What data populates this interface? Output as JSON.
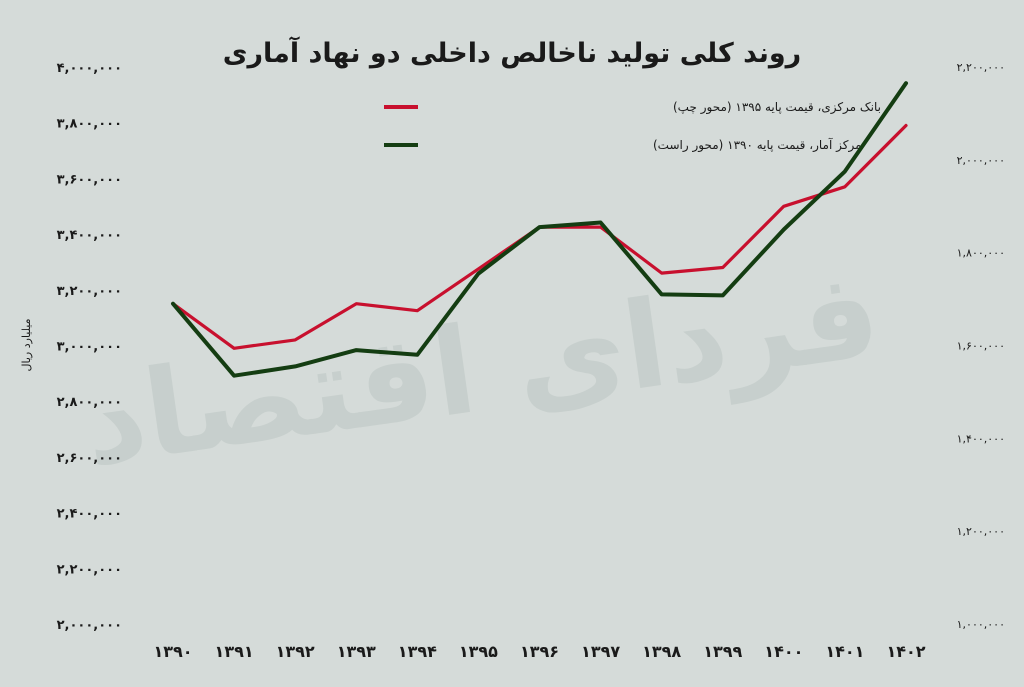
{
  "chart_data": {
    "type": "line",
    "title": "روند کلی تولید ناخالص داخلی دو نهاد آماری",
    "ylabel": "میلیارد ریال",
    "watermark": "فردای اقتصاد",
    "categories": [
      "۱۳۹۰",
      "۱۳۹۱",
      "۱۳۹۲",
      "۱۳۹۳",
      "۱۳۹۴",
      "۱۳۹۵",
      "۱۳۹۶",
      "۱۳۹۷",
      "۱۳۹۸",
      "۱۳۹۹",
      "۱۴۰۰",
      "۱۴۰۱",
      "۱۴۰۲"
    ],
    "y_left": {
      "ylim": [
        2000000,
        4000000
      ],
      "ticks": [
        2000000,
        2200000,
        2400000,
        2600000,
        2800000,
        3000000,
        3200000,
        3400000,
        3600000,
        3800000,
        4000000
      ],
      "tick_labels": [
        "۲,۰۰۰,۰۰۰",
        "۲,۲۰۰,۰۰۰",
        "۲,۴۰۰,۰۰۰",
        "۲,۶۰۰,۰۰۰",
        "۲,۸۰۰,۰۰۰",
        "۳,۰۰۰,۰۰۰",
        "۳,۲۰۰,۰۰۰",
        "۳,۴۰۰,۰۰۰",
        "۳,۶۰۰,۰۰۰",
        "۳,۸۰۰,۰۰۰",
        "۴,۰۰۰,۰۰۰"
      ]
    },
    "y_right": {
      "ylim": [
        1000000,
        2200000
      ],
      "ticks": [
        1000000,
        1200000,
        1400000,
        1600000,
        1800000,
        2000000,
        2200000
      ],
      "tick_labels": [
        "۱,۰۰۰,۰۰۰",
        "۱,۲۰۰,۰۰۰",
        "۱,۴۰۰,۰۰۰",
        "۱,۶۰۰,۰۰۰",
        "۱,۸۰۰,۰۰۰",
        "۲,۰۰۰,۰۰۰",
        "۲,۲۰۰,۰۰۰"
      ]
    },
    "series": [
      {
        "name": "بانک مرکزی، قیمت پایه ۱۳۹۵ (محور چپ)",
        "axis": "left",
        "color": "#c8102e",
        "values": [
          3150000,
          2990000,
          3020000,
          3150000,
          3125000,
          3275000,
          3425000,
          3425000,
          3260000,
          3280000,
          3500000,
          3570000,
          3790000
        ]
      },
      {
        "name": "مرکز آمار، قیمت پایه ۱۳۹۰ (محور راست)",
        "axis": "right",
        "color": "#143d12",
        "values": [
          1690000,
          1535000,
          1555000,
          1590000,
          1580000,
          1755000,
          1855000,
          1865000,
          1710000,
          1708000,
          1850000,
          1975000,
          2165000
        ]
      }
    ],
    "legend_position": "top-center",
    "grid": false
  }
}
